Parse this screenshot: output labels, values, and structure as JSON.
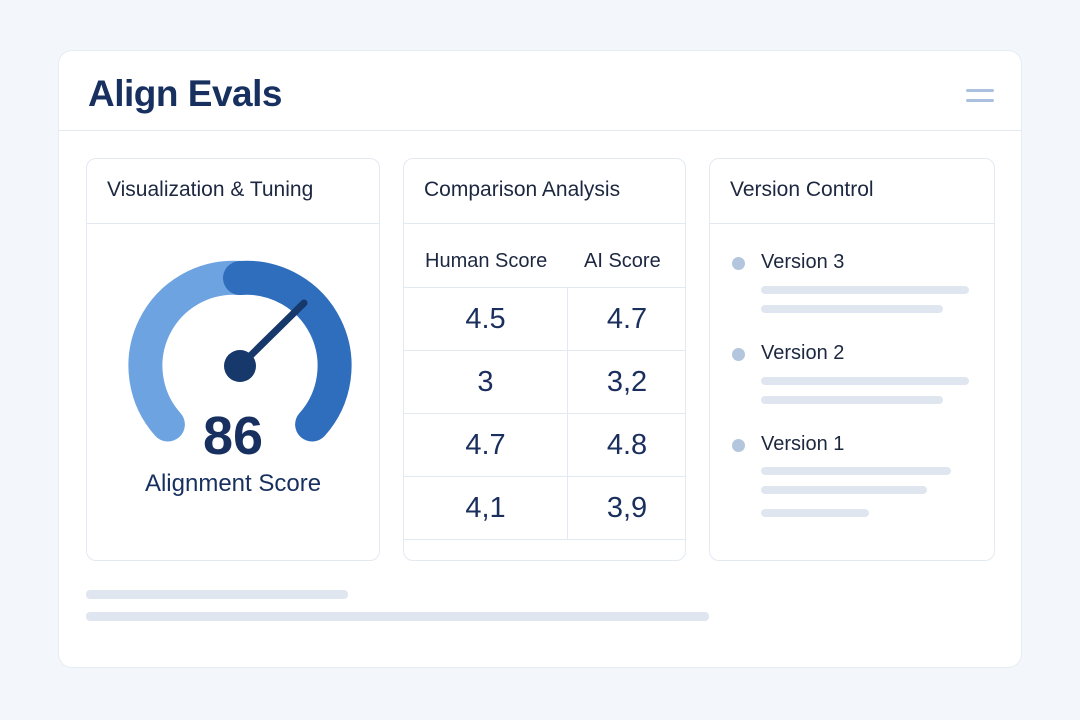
{
  "header": {
    "title": "Align Evals",
    "menu_icon": "hamburger-menu-icon"
  },
  "visualization": {
    "title": "Visualization & Tuning",
    "score": "86",
    "score_label": "Alignment Score",
    "gauge_level_percent": 86,
    "colors": {
      "light": "#6ea3e1",
      "dark": "#2f6dbd",
      "needle": "#17386b"
    }
  },
  "comparison": {
    "title": "Comparison Analysis",
    "columns": [
      "Human Score",
      "AI Score"
    ],
    "rows": [
      [
        "4.5",
        "4.7"
      ],
      [
        "3",
        "3,2"
      ],
      [
        "4.7",
        "4.8"
      ],
      [
        "4,1",
        "3,9"
      ]
    ]
  },
  "versions": {
    "title": "Version Control",
    "items": [
      {
        "label": "Version 3"
      },
      {
        "label": "Version 2"
      },
      {
        "label": "Version 1"
      }
    ]
  }
}
